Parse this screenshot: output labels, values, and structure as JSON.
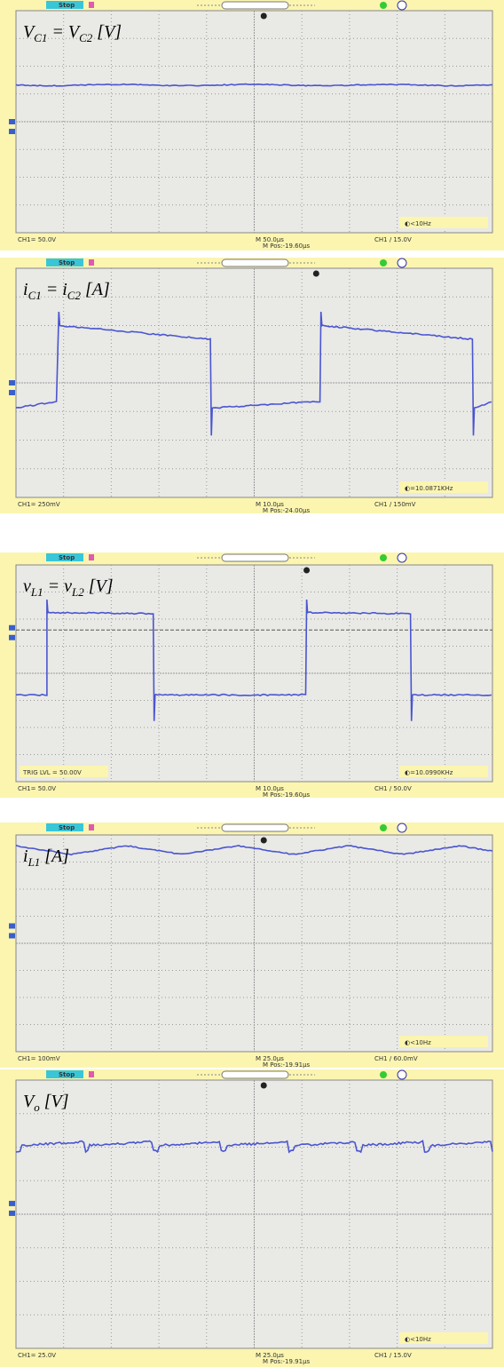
{
  "panels": [
    {
      "status": "Stop",
      "label": [
        {
          "t": "V",
          "s": "C1"
        },
        {
          "t": " = V",
          "s": "C2"
        },
        {
          "t": " [V]"
        }
      ],
      "ch1_scale": "CH1= 50.0V",
      "time_base": "M 50.0μs",
      "position": "M Pos:-19.60μs",
      "trigger": "CH1 / 15.0V",
      "frequency": "◐<10Hz"
    },
    {
      "status": "Stop",
      "label": [
        {
          "t": "i",
          "s": "C1"
        },
        {
          "t": " = i",
          "s": "C2"
        },
        {
          "t": " [A]"
        }
      ],
      "ch1_scale": "CH1= 250mV",
      "time_base": "M 10.0μs",
      "position": "M Pos:-24.00μs",
      "trigger": "CH1 / 150mV",
      "frequency": "◐=10.0871KHz"
    },
    {
      "status": "Stop",
      "label": [
        {
          "t": "v",
          "s": "L1"
        },
        {
          "t": " = v",
          "s": "L2"
        },
        {
          "t": " [V]"
        }
      ],
      "ch1_scale": "CH1= 50.0V",
      "time_base": "M 10.0μs",
      "position": "M Pos:-19.60μs",
      "trigger": "CH1 / 50.0V",
      "frequency": "◐=10.0990KHz",
      "trig_level": "TRIG LVL = 50.00V"
    },
    {
      "status": "Stop",
      "label": [
        {
          "t": "i",
          "s": "L1"
        },
        {
          "t": " [A]"
        }
      ],
      "ch1_scale": "CH1= 100mV",
      "time_base": "M 25.0μs",
      "position": "M Pos:-19.91μs",
      "trigger": "CH1 / 60.0mV",
      "frequency": "◐<10Hz"
    },
    {
      "status": "Stop",
      "label": [
        {
          "t": "V",
          "s": "o"
        },
        {
          "t": " [V]"
        }
      ],
      "ch1_scale": "CH1= 25.0V",
      "time_base": "M 25.0μs",
      "position": "M Pos:-19.91μs",
      "trigger": "CH1 / 15.0V",
      "frequency": "◐<10Hz"
    }
  ]
}
